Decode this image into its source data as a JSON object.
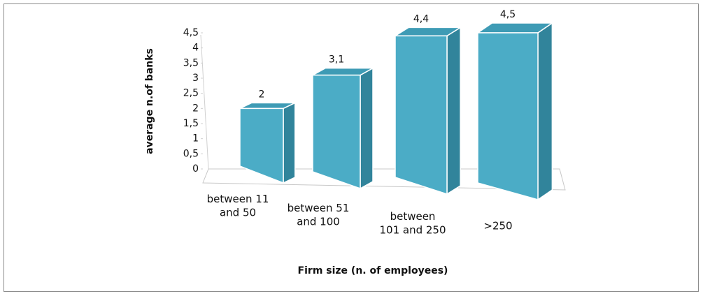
{
  "chart_data": {
    "type": "bar3d",
    "categories": [
      "between 11\nand 50",
      "between 51\nand 100",
      "between\n101 and 250",
      ">250"
    ],
    "values": [
      2,
      3.1,
      4.4,
      4.5
    ],
    "value_labels": [
      "2",
      "3,1",
      "4,4",
      "4,5"
    ],
    "color": "#4bacc6",
    "ylim": [
      0,
      4.5
    ],
    "yticks": [
      0,
      {
        "value": 0.5,
        "label": "0,5"
      },
      1,
      {
        "value": 1.5,
        "label": "1,5"
      },
      2,
      {
        "value": 2.5,
        "label": "2,5"
      },
      3,
      {
        "value": 3.5,
        "label": "3,5"
      },
      4,
      {
        "value": 4.5,
        "label": "4,5"
      }
    ],
    "y_label": "average n.of banks",
    "x_label": "Firm size (n. of employees)"
  }
}
